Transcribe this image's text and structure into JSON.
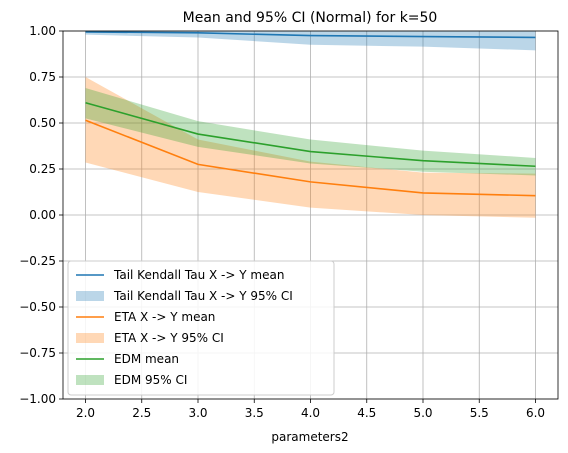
{
  "chart_data": {
    "type": "line",
    "title": "Mean and 95% CI (Normal) for k=50",
    "xlabel": "parameters2",
    "ylabel": "",
    "xlim": [
      1.8,
      6.2
    ],
    "ylim": [
      -1.0,
      1.0
    ],
    "xticks": [
      "2.0",
      "2.5",
      "3.0",
      "3.5",
      "4.0",
      "4.5",
      "5.0",
      "5.5",
      "6.0"
    ],
    "yticks": [
      "−1.00",
      "−0.75",
      "−0.50",
      "−0.25",
      "0.00",
      "0.25",
      "0.50",
      "0.75",
      "1.00"
    ],
    "grid": true,
    "legend_position": "lower-left",
    "x": [
      2,
      3,
      4,
      5,
      6
    ],
    "series": [
      {
        "name": "Tail Kendall Tau X -> Y mean",
        "ci_name": "Tail Kendall Tau X -> Y 95% CI",
        "color": "#1f77b4",
        "values": [
          0.995,
          0.99,
          0.975,
          0.97,
          0.965
        ],
        "ci_lower": [
          0.98,
          0.965,
          0.925,
          0.915,
          0.895
        ],
        "ci_upper": [
          1.0,
          1.0,
          1.0,
          1.0,
          1.0
        ]
      },
      {
        "name": "ETA X -> Y mean",
        "ci_name": "ETA X -> Y 95% CI",
        "color": "#ff7f0e",
        "values": [
          0.515,
          0.275,
          0.18,
          0.12,
          0.105
        ],
        "ci_lower": [
          0.285,
          0.125,
          0.04,
          0.0,
          -0.015
        ],
        "ci_upper": [
          0.75,
          0.41,
          0.29,
          0.23,
          0.225
        ]
      },
      {
        "name": "EDM mean",
        "ci_name": "EDM 95% CI",
        "color": "#2ca02c",
        "values": [
          0.61,
          0.44,
          0.345,
          0.295,
          0.265
        ],
        "ci_lower": [
          0.525,
          0.37,
          0.28,
          0.235,
          0.215
        ],
        "ci_upper": [
          0.69,
          0.51,
          0.41,
          0.35,
          0.31
        ]
      }
    ]
  }
}
